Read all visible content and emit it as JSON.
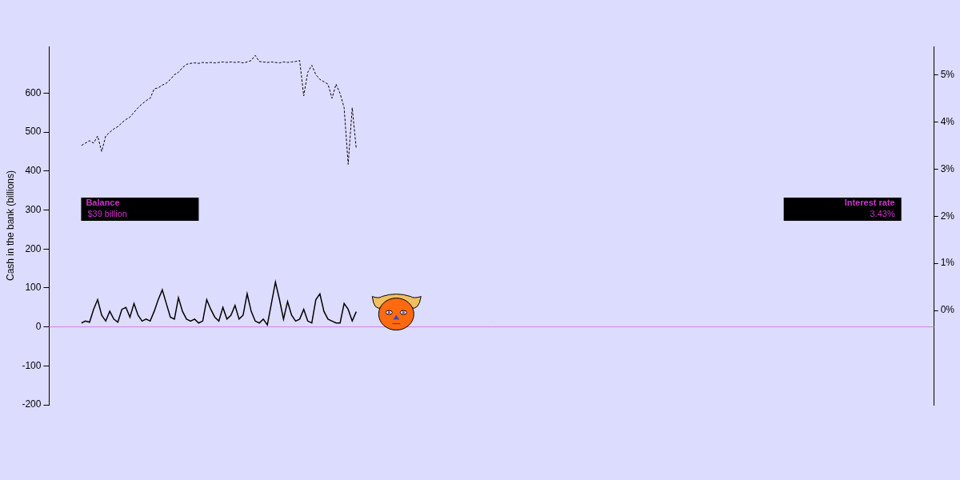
{
  "chart_data": {
    "type": "line",
    "y_label": "Cash in the bank (billions)",
    "x": [
      8,
      9,
      10,
      11,
      12,
      13,
      14,
      15,
      16,
      17,
      18,
      19,
      20,
      21,
      22,
      23,
      24,
      25,
      26,
      27,
      28,
      29,
      30,
      31,
      32,
      33,
      34,
      35,
      36,
      37,
      38,
      39,
      40,
      41,
      42,
      43,
      44,
      45,
      46,
      47,
      48,
      49,
      50,
      51,
      52,
      53,
      54,
      55,
      56,
      57,
      58,
      59,
      60,
      61,
      62,
      63,
      64,
      65,
      66,
      67,
      68,
      69,
      70,
      71,
      72,
      73,
      74,
      75,
      76
    ],
    "xlim": [
      0,
      219
    ],
    "xticks": [],
    "ylim": [
      -200,
      720
    ],
    "yticks": [
      -200,
      -100,
      0,
      100,
      200,
      300,
      400,
      500,
      600
    ],
    "y2lim": [
      -2,
      5.6
    ],
    "y2ticks": [
      {
        "value": 0,
        "label": "0%"
      },
      {
        "value": 1,
        "label": "1%"
      },
      {
        "value": 2,
        "label": "2%"
      },
      {
        "value": 3,
        "label": "3%"
      },
      {
        "value": 4,
        "label": "4%"
      },
      {
        "value": 5,
        "label": "5%"
      }
    ],
    "grid": false,
    "series": [
      {
        "color": "#000000",
        "line_style": "solid",
        "axis": "y",
        "values": [
          10,
          15,
          12,
          45,
          70,
          30,
          15,
          40,
          20,
          12,
          45,
          50,
          25,
          60,
          30,
          15,
          20,
          15,
          40,
          70,
          95,
          60,
          25,
          20,
          75,
          40,
          20,
          15,
          20,
          10,
          15,
          70,
          45,
          25,
          15,
          50,
          20,
          30,
          55,
          20,
          30,
          85,
          40,
          15,
          10,
          20,
          5,
          60,
          115,
          70,
          20,
          65,
          30,
          15,
          20,
          45,
          15,
          10,
          70,
          85,
          40,
          20,
          15,
          10,
          10,
          60,
          45,
          15,
          39
        ]
      },
      {
        "color": "#000000",
        "line_style": "dashed",
        "axis": "y2",
        "values": [
          3.5,
          3.55,
          3.6,
          3.55,
          3.7,
          3.37,
          3.7,
          3.78,
          3.85,
          3.9,
          3.98,
          4.05,
          4.1,
          4.2,
          4.3,
          4.38,
          4.45,
          4.5,
          4.7,
          4.72,
          4.78,
          4.82,
          4.9,
          5.0,
          5.05,
          5.15,
          5.22,
          5.24,
          5.25,
          5.24,
          5.26,
          5.25,
          5.26,
          5.25,
          5.26,
          5.27,
          5.26,
          5.27,
          5.26,
          5.27,
          5.25,
          5.27,
          5.3,
          5.41,
          5.28,
          5.27,
          5.26,
          5.27,
          5.26,
          5.25,
          5.27,
          5.26,
          5.27,
          5.28,
          5.3,
          4.55,
          5.05,
          5.2,
          5.0,
          4.9,
          4.85,
          4.8,
          4.5,
          4.8,
          4.6,
          4.3,
          3.1,
          4.3,
          3.43
        ]
      }
    ],
    "reference_lines": [
      {
        "axis": "y",
        "value": 0
      }
    ],
    "annotations": [
      {
        "title": "Balance",
        "text": "$39 billion",
        "side": "left"
      },
      {
        "title": "Interest rate",
        "text": "3.43%",
        "side": "right"
      }
    ]
  }
}
